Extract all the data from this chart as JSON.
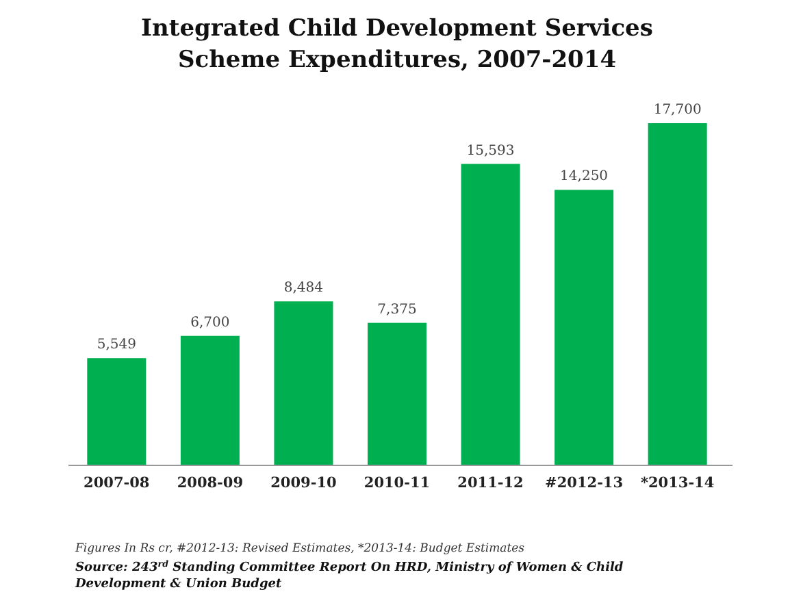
{
  "chart_data": {
    "type": "bar",
    "title": "Integrated Child Development Services Scheme Expenditures, 2007-2014",
    "categories": [
      "2007-08",
      "2008-09",
      "2009-10",
      "2010-11",
      "2011-12",
      "#2012-13",
      "*2013-14"
    ],
    "values": [
      5549,
      6700,
      8484,
      7375,
      15593,
      14250,
      17700
    ],
    "value_labels": [
      "5,549",
      "6,700",
      "8,484",
      "7,375",
      "15,593",
      "14,250",
      "17,700"
    ],
    "color": "#00b050",
    "annotations": [
      "Figures In Rs cr, #2012-13: Revised Estimates, *2013-14: Budget Estimates",
      "Source:  243$^{rd}$ Standing Committee Report On HRD, Ministry of Women & Child Development & Union Budget"
    ]
  }
}
